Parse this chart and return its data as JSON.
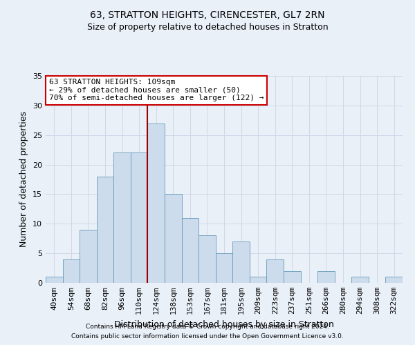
{
  "title_line1": "63, STRATTON HEIGHTS, CIRENCESTER, GL7 2RN",
  "title_line2": "Size of property relative to detached houses in Stratton",
  "xlabel": "Distribution of detached houses by size in Stratton",
  "ylabel": "Number of detached properties",
  "categories": [
    "40sqm",
    "54sqm",
    "68sqm",
    "82sqm",
    "96sqm",
    "110sqm",
    "124sqm",
    "138sqm",
    "153sqm",
    "167sqm",
    "181sqm",
    "195sqm",
    "209sqm",
    "223sqm",
    "237sqm",
    "251sqm",
    "266sqm",
    "280sqm",
    "294sqm",
    "308sqm",
    "322sqm"
  ],
  "values": [
    1,
    4,
    9,
    18,
    22,
    22,
    27,
    15,
    11,
    8,
    5,
    7,
    1,
    4,
    2,
    0,
    2,
    0,
    1,
    0,
    1
  ],
  "bar_color": "#ccdcec",
  "bar_edgecolor": "#6699bb",
  "grid_color": "#d0d8e8",
  "vline_x_index": 5.5,
  "vline_color": "#990000",
  "annotation_line1": "63 STRATTON HEIGHTS: 109sqm",
  "annotation_line2": "← 29% of detached houses are smaller (50)",
  "annotation_line3": "70% of semi-detached houses are larger (122) →",
  "annotation_box_facecolor": "#ffffff",
  "annotation_box_edgecolor": "#cc0000",
  "ylim": [
    0,
    35
  ],
  "yticks": [
    0,
    5,
    10,
    15,
    20,
    25,
    30,
    35
  ],
  "footnote1": "Contains HM Land Registry data © Crown copyright and database right 2024.",
  "footnote2": "Contains public sector information licensed under the Open Government Licence v3.0.",
  "bg_color": "#eaf0f8",
  "title_fontsize": 10,
  "subtitle_fontsize": 9,
  "ylabel_fontsize": 9,
  "xlabel_fontsize": 9,
  "tick_fontsize": 8,
  "annotation_fontsize": 8,
  "footnote_fontsize": 6.5
}
